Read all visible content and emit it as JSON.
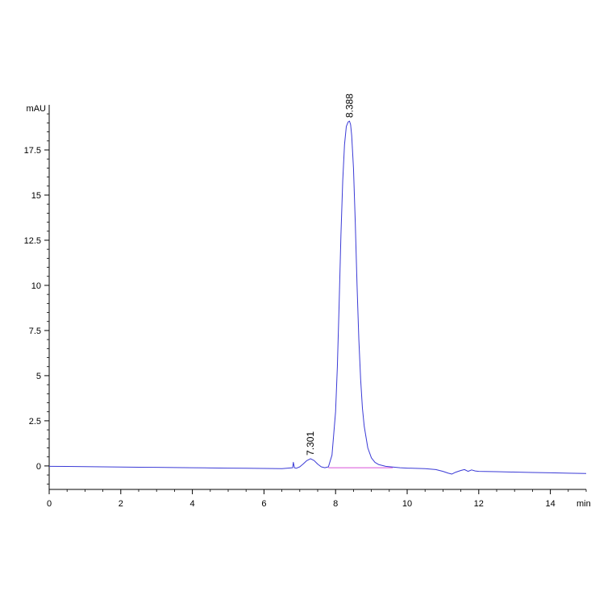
{
  "chart_data": {
    "type": "line",
    "title": "",
    "xlabel": "min",
    "ylabel": "mAU",
    "xlim": [
      0,
      15
    ],
    "ylim": [
      -1.3,
      20.0
    ],
    "x_ticks": [
      0,
      2,
      4,
      6,
      8,
      10,
      12,
      14
    ],
    "x_tick_labels": [
      "0",
      "2",
      "4",
      "6",
      "8",
      "10",
      "12",
      "14"
    ],
    "y_ticks": [
      0,
      2.5,
      5,
      7.5,
      10,
      12.5,
      15,
      17.5
    ],
    "y_tick_labels": [
      "0",
      "2.5",
      "5",
      "7.5",
      "10",
      "12.5",
      "15",
      "17.5"
    ],
    "grid": false,
    "colors": {
      "signal": "#3a3ad6",
      "baseline": "#d94fd9",
      "axis": "#000000"
    },
    "series": [
      {
        "x": [
          0,
          0.5,
          1.0,
          1.5,
          2.0,
          2.5,
          3.0,
          3.5,
          4.0,
          4.5,
          5.0,
          5.5,
          6.0,
          6.5,
          6.8,
          6.82,
          6.85,
          6.9,
          7.0,
          7.1,
          7.2,
          7.3,
          7.4,
          7.5,
          7.6,
          7.7,
          7.8,
          7.9,
          8.0,
          8.05,
          8.1,
          8.15,
          8.2,
          8.25,
          8.3,
          8.35,
          8.388,
          8.42,
          8.45,
          8.5,
          8.55,
          8.6,
          8.65,
          8.7,
          8.75,
          8.8,
          8.9,
          9.0,
          9.1,
          9.2,
          9.4,
          9.6,
          9.8,
          10.0,
          10.5,
          10.8,
          11.0,
          11.15,
          11.25,
          11.35,
          11.5,
          11.6,
          11.7,
          11.8,
          11.9,
          12.0,
          12.5,
          13.0,
          13.5,
          14.0,
          14.5,
          15.0
        ],
        "y": [
          -0.02,
          -0.03,
          -0.04,
          -0.05,
          -0.06,
          -0.07,
          -0.08,
          -0.09,
          -0.1,
          -0.11,
          -0.12,
          -0.13,
          -0.14,
          -0.15,
          -0.1,
          0.2,
          -0.1,
          -0.13,
          -0.05,
          0.12,
          0.3,
          0.4,
          0.3,
          0.1,
          -0.05,
          -0.1,
          -0.05,
          0.6,
          3.0,
          5.5,
          9.0,
          12.8,
          15.8,
          17.8,
          18.8,
          19.05,
          19.1,
          18.9,
          18.3,
          16.5,
          13.5,
          10.0,
          7.0,
          4.8,
          3.2,
          2.2,
          1.0,
          0.45,
          0.2,
          0.08,
          -0.02,
          -0.06,
          -0.1,
          -0.12,
          -0.15,
          -0.2,
          -0.3,
          -0.4,
          -0.45,
          -0.35,
          -0.25,
          -0.2,
          -0.3,
          -0.22,
          -0.28,
          -0.3,
          -0.32,
          -0.34,
          -0.36,
          -0.38,
          -0.4,
          -0.42
        ]
      }
    ],
    "baseline": {
      "x": [
        7.8,
        9.6
      ],
      "y": [
        -0.1,
        -0.1
      ]
    },
    "annotations": [
      {
        "text": "7.301",
        "x": 7.301,
        "y": 0.4
      },
      {
        "text": "8.388",
        "x": 8.388,
        "y": 19.1
      }
    ]
  }
}
